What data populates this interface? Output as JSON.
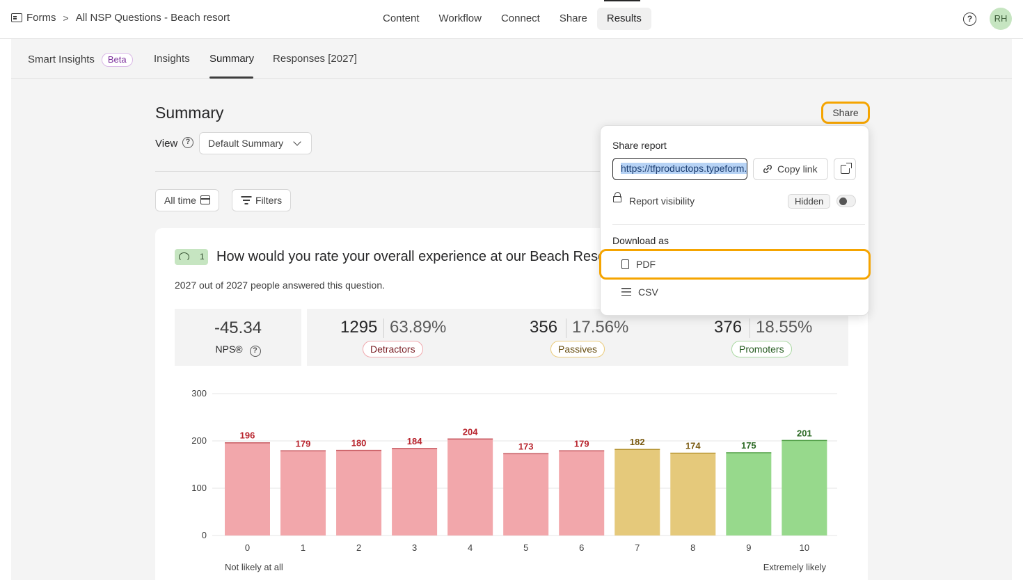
{
  "breadcrumb": {
    "root": "Forms",
    "separator": ">",
    "current": "All NSP Questions - Beach resort"
  },
  "main_nav": [
    "Content",
    "Workflow",
    "Connect",
    "Share",
    "Results"
  ],
  "main_nav_active": "Results",
  "user": {
    "initials": "RH"
  },
  "subtabs": {
    "smart_insights": "Smart Insights",
    "beta": "Beta",
    "insights": "Insights",
    "summary": "Summary",
    "responses": "Responses [2027]"
  },
  "summary": {
    "title": "Summary",
    "view_label": "View",
    "view_value": "Default Summary",
    "all_time": "All time",
    "filters": "Filters",
    "share": "Share"
  },
  "question": {
    "number": "1",
    "text": "How would you rate your overall experience at our Beach Resort?",
    "answered": "2027 out of 2027 people answered this question."
  },
  "nps": {
    "value": "-45.34",
    "label": "NPS®"
  },
  "stats": [
    {
      "count": "1295",
      "percent": "63.89%",
      "label": "Detractors"
    },
    {
      "count": "356",
      "percent": "17.56%",
      "label": "Passives"
    },
    {
      "count": "376",
      "percent": "18.55%",
      "label": "Promoters"
    }
  ],
  "share_popover": {
    "title": "Share report",
    "url": "https://tfproductops.typeform.com",
    "copy_link": "Copy link",
    "visibility_label": "Report visibility",
    "visibility_state": "Hidden",
    "download_title": "Download as",
    "pdf": "PDF",
    "csv": "CSV"
  },
  "colors": {
    "detractor": "#f2a7ab",
    "passive": "#e5c97b",
    "promoter": "#97d98c",
    "highlight": "#f5a400"
  },
  "chart_data": {
    "type": "bar",
    "categories": [
      "0",
      "1",
      "2",
      "3",
      "4",
      "5",
      "6",
      "7",
      "8",
      "9",
      "10"
    ],
    "values": [
      196,
      179,
      180,
      184,
      204,
      173,
      179,
      182,
      174,
      175,
      201
    ],
    "groups": [
      "detractor",
      "detractor",
      "detractor",
      "detractor",
      "detractor",
      "detractor",
      "detractor",
      "passive",
      "passive",
      "promoter",
      "promoter"
    ],
    "ylim": [
      0,
      300
    ],
    "yticks": [
      0,
      100,
      200,
      300
    ],
    "x_left_label": "Not likely at all",
    "x_right_label": "Extremely likely",
    "grid": true
  }
}
